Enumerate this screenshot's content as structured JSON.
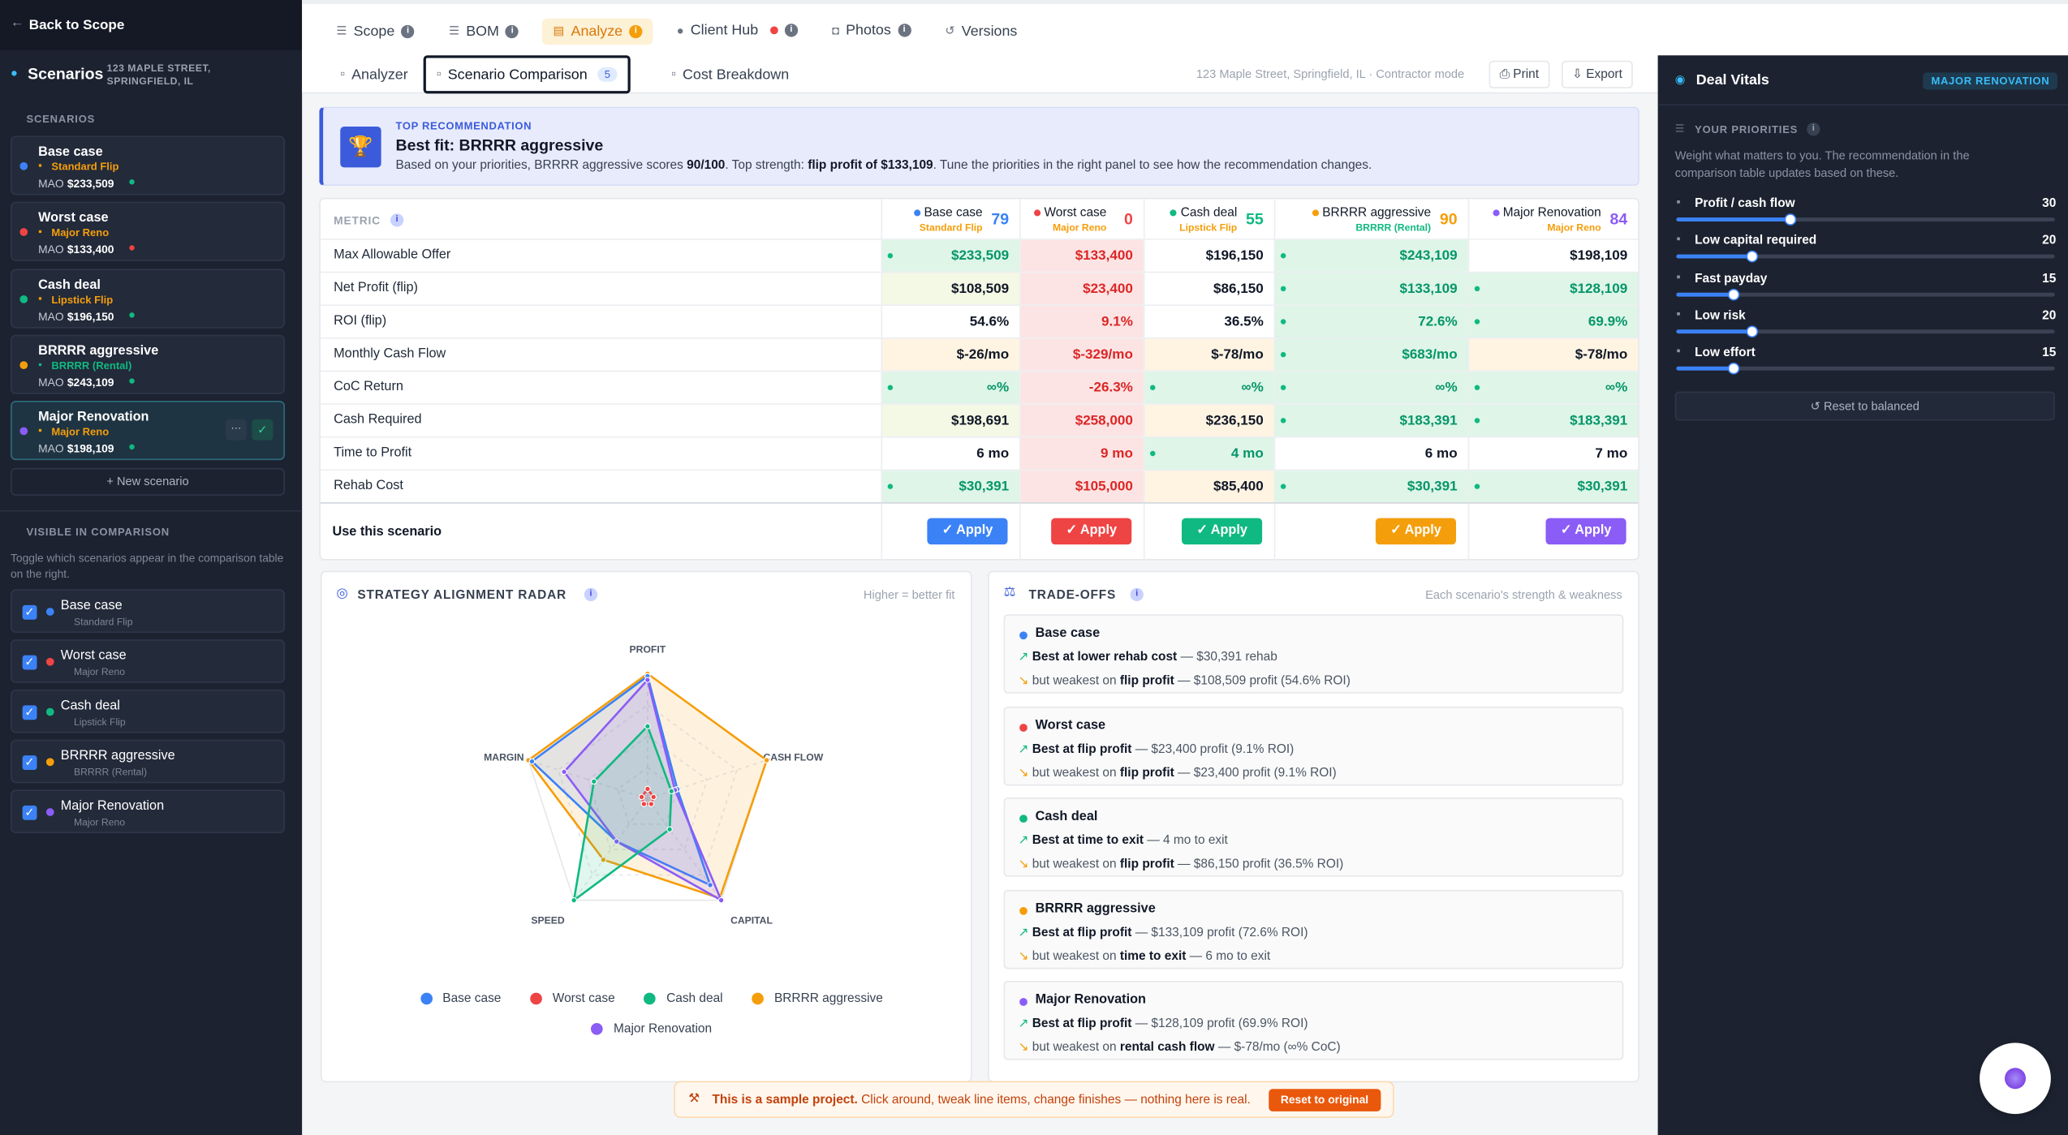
{
  "sidebar": {
    "back": "Back to Scope",
    "title": "Scenarios",
    "address": "123 MAPLE STREET, SPRINGFIELD, IL",
    "section": "SCENARIOS",
    "mao_label": "MAO",
    "selected": 4,
    "scenarios": [
      {
        "name": "Base case",
        "tag": "Standard Flip",
        "tag_color": "#f59e0b",
        "mao": "$233,509",
        "color": "#3b82f6"
      },
      {
        "name": "Worst case",
        "tag": "Major Reno",
        "tag_color": "#f59e0b",
        "mao": "$133,400",
        "color": "#ef4444"
      },
      {
        "name": "Cash deal",
        "tag": "Lipstick Flip",
        "tag_color": "#f59e0b",
        "mao": "$196,150",
        "color": "#10b981"
      },
      {
        "name": "BRRRR aggressive",
        "tag": "BRRRR (Rental)",
        "tag_color": "#10b981",
        "mao": "$243,109",
        "color": "#f59e0b"
      },
      {
        "name": "Major Renovation",
        "tag": "Major Reno",
        "tag_color": "#f59e0b",
        "mao": "$198,109",
        "color": "#8b5cf6"
      }
    ],
    "new": "New scenario",
    "visible_title": "VISIBLE IN COMPARISON",
    "visible_note": "Toggle which scenarios appear in the comparison table on the right."
  },
  "nav": {
    "tabs": [
      "Scope",
      "BOM",
      "Analyze",
      "Client Hub",
      "Photos",
      "Versions"
    ],
    "active": 2
  },
  "subnav": {
    "tabs": [
      "Analyzer",
      "Scenario Comparison",
      "Cost Breakdown"
    ],
    "active": 1,
    "count": "5",
    "context": "123 Maple Street, Springfield, IL · Contractor mode",
    "print": "Print",
    "export": "Export"
  },
  "recommendation": {
    "label": "TOP RECOMMENDATION",
    "title": "Best fit: BRRRR aggressive",
    "text": [
      "Based on your priorities, BRRRR aggressive scores ",
      "90/100",
      ". Top strength: ",
      "flip profit of $133,109",
      ". Tune the priorities in the right panel to see how the recommendation changes."
    ]
  },
  "comparison": {
    "metric_header": "METRIC",
    "scores": [
      "79",
      "0",
      "55",
      "90",
      "84"
    ],
    "rows": [
      {
        "label": "Max Allowable Offer",
        "cells": [
          "$233,509",
          "$133,400",
          "$196,150",
          "$243,109",
          "$198,109"
        ],
        "tones": [
          "best",
          "worst",
          "none",
          "best",
          "none"
        ]
      },
      {
        "label": "Net Profit (flip)",
        "cells": [
          "$108,509",
          "$23,400",
          "$86,150",
          "$133,109",
          "$128,109"
        ],
        "tones": [
          "good",
          "worst",
          "none",
          "best",
          "best"
        ]
      },
      {
        "label": "ROI (flip)",
        "cells": [
          "54.6%",
          "9.1%",
          "36.5%",
          "72.6%",
          "69.9%"
        ],
        "tones": [
          "none",
          "worst",
          "none",
          "best",
          "best"
        ]
      },
      {
        "label": "Monthly Cash Flow",
        "cells": [
          "$-26/mo",
          "$-329/mo",
          "$-78/mo",
          "$683/mo",
          "$-78/mo"
        ],
        "tones": [
          "fair",
          "worst",
          "fair",
          "best",
          "fair"
        ]
      },
      {
        "label": "CoC Return",
        "cells": [
          "∞%",
          "-26.3%",
          "∞%",
          "∞%",
          "∞%"
        ],
        "tones": [
          "best",
          "worst",
          "best",
          "best",
          "best"
        ]
      },
      {
        "label": "Cash Required",
        "cells": [
          "$198,691",
          "$258,000",
          "$236,150",
          "$183,391",
          "$183,391"
        ],
        "tones": [
          "good",
          "worst",
          "fair",
          "best",
          "best"
        ]
      },
      {
        "label": "Time to Profit",
        "cells": [
          "6 mo",
          "9 mo",
          "4 mo",
          "6 mo",
          "7 mo"
        ],
        "tones": [
          "none",
          "worst",
          "best",
          "none",
          "none"
        ]
      },
      {
        "label": "Rehab Cost",
        "cells": [
          "$30,391",
          "$105,000",
          "$85,400",
          "$30,391",
          "$30,391"
        ],
        "tones": [
          "best",
          "worst",
          "fair",
          "best",
          "best"
        ]
      }
    ],
    "apply_label": "Use this scenario",
    "apply": "Apply"
  },
  "chart_data": {
    "type": "radar",
    "title": "STRATEGY ALIGNMENT RADAR",
    "note": "Higher = better fit",
    "axes": [
      "PROFIT",
      "CASH FLOW",
      "CAPITAL",
      "SPEED",
      "MARGIN"
    ],
    "rlim": [
      0,
      100
    ],
    "series": [
      {
        "name": "Base case",
        "color": "#3b82f6",
        "values": [
          98,
          25,
          85,
          42,
          97
        ]
      },
      {
        "name": "Worst case",
        "color": "#ef4444",
        "values": [
          8,
          5,
          5,
          5,
          5
        ]
      },
      {
        "name": "Cash deal",
        "color": "#10b981",
        "values": [
          58,
          20,
          30,
          100,
          45
        ]
      },
      {
        "name": "BRRRR aggressive",
        "color": "#f59e0b",
        "values": [
          100,
          100,
          98,
          60,
          100
        ]
      },
      {
        "name": "Major Renovation",
        "color": "#8b5cf6",
        "values": [
          95,
          23,
          100,
          42,
          70
        ]
      }
    ]
  },
  "tradeoffs": {
    "title": "TRADE-OFFS",
    "note": "Each scenario's strength & weakness",
    "best_label": "Best at",
    "weak_label": "but weakest on",
    "items": [
      {
        "strength": "lower rehab cost",
        "strength_detail": "— $30,391 rehab",
        "weakness": "flip profit",
        "weakness_detail": "— $108,509 profit (54.6% ROI)"
      },
      {
        "strength": "flip profit",
        "strength_detail": "— $23,400 profit (9.1% ROI)",
        "weakness": "flip profit",
        "weakness_detail": "— $23,400 profit (9.1% ROI)"
      },
      {
        "strength": "time to exit",
        "strength_detail": "— 4 mo to exit",
        "weakness": "flip profit",
        "weakness_detail": "— $86,150 profit (36.5% ROI)"
      },
      {
        "strength": "flip profit",
        "strength_detail": "— $133,109 profit (72.6% ROI)",
        "weakness": "time to exit",
        "weakness_detail": "— 6 mo to exit"
      },
      {
        "strength": "flip profit",
        "strength_detail": "— $128,109 profit (69.9% ROI)",
        "weakness": "rental cash flow",
        "weakness_detail": "— $-78/mo (∞% CoC)"
      }
    ]
  },
  "vitals": {
    "title": "Deal Vitals",
    "badge": "MAJOR RENOVATION",
    "section": "YOUR PRIORITIES",
    "note": "Weight what matters to you. The recommendation in the comparison table updates based on these.",
    "range": [
      0,
      100
    ],
    "priorities": [
      {
        "label": "Profit / cash flow",
        "value": 30
      },
      {
        "label": "Low capital required",
        "value": 20
      },
      {
        "label": "Fast payday",
        "value": 15
      },
      {
        "label": "Low risk",
        "value": 20
      },
      {
        "label": "Low effort",
        "value": 15
      }
    ],
    "reset": "Reset to balanced"
  },
  "banner": {
    "bold": "This is a sample project.",
    "text": "Click around, tweak line items, change finishes — nothing here is real.",
    "button": "Reset to original"
  }
}
